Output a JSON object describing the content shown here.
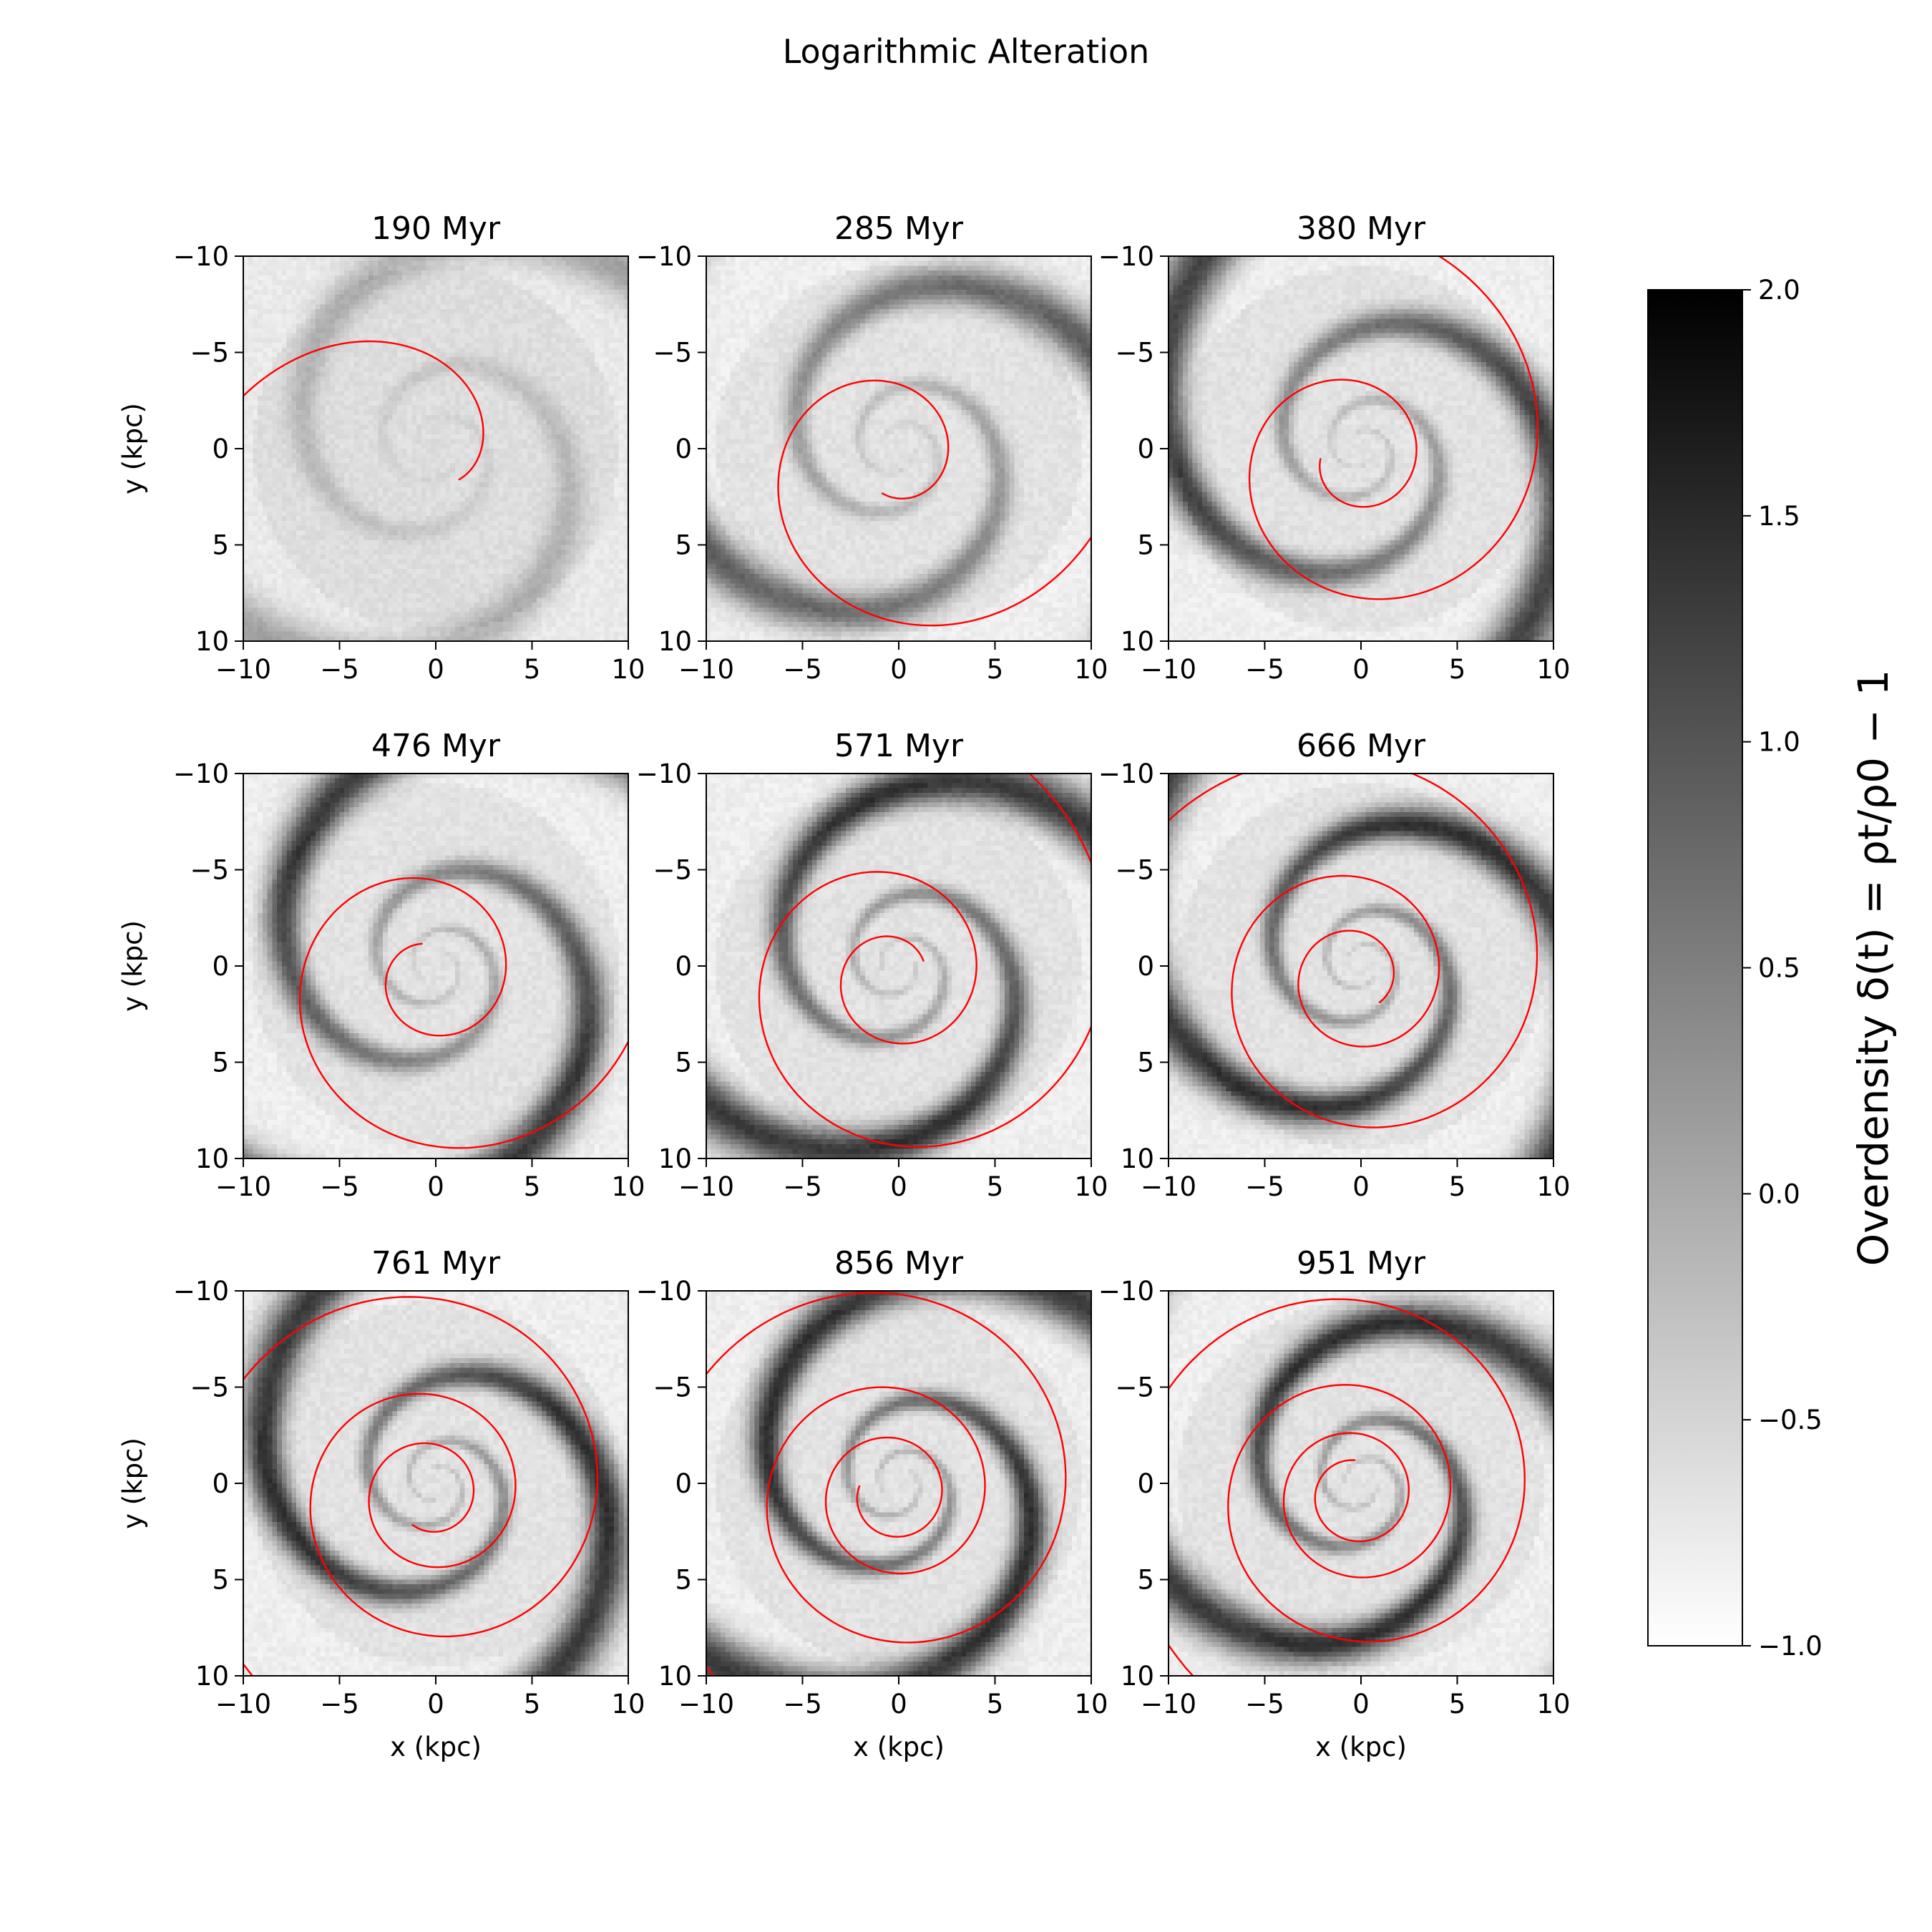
{
  "figure": {
    "suptitle": "Logarithmic Alteration"
  },
  "chart_data": {
    "type": "heatmap",
    "title": "Logarithmic Alteration",
    "xlabel": "x (kpc)",
    "ylabel": "y (kpc)",
    "xlim": [
      -10,
      10
    ],
    "ylim": [
      10,
      -10
    ],
    "xticks": [
      -10,
      -5,
      0,
      5,
      10
    ],
    "yticks": [
      -10,
      -5,
      0,
      5,
      10
    ],
    "x_tick_labels": [
      "−10",
      "−5",
      "0",
      "5",
      "10"
    ],
    "y_tick_labels": [
      "−10",
      "−5",
      "0",
      "5",
      "10"
    ],
    "colormap": "gray_r",
    "overlay_color": "#ff0000",
    "colorbar": {
      "label": "Overdensity δ(t) = ρt/ρ0 − 1",
      "range": [
        -1.0,
        2.0
      ],
      "ticks": [
        2.0,
        1.5,
        1.0,
        0.5,
        0.0,
        -0.5,
        -1.0
      ],
      "tick_labels": [
        "2.0",
        "1.5",
        "1.0",
        "0.5",
        "0.0",
        "−0.5",
        "−1.0"
      ]
    },
    "panels": [
      {
        "title": "190 Myr",
        "time_myr": 190,
        "spiral_turns": 0.55,
        "spiral_r_max": 10.5,
        "arm_rings": 1,
        "arm_strength": 0.35,
        "shade": 0.12
      },
      {
        "title": "285 Myr",
        "time_myr": 285,
        "spiral_turns": 1.3,
        "spiral_r_max": 12.0,
        "arm_rings": 2,
        "arm_strength": 0.7,
        "shade": 0.1
      },
      {
        "title": "380 Myr",
        "time_myr": 380,
        "spiral_turns": 1.7,
        "spiral_r_max": 11.5,
        "arm_rings": 3,
        "arm_strength": 0.8,
        "shade": 0.1
      },
      {
        "title": "476 Myr",
        "time_myr": 476,
        "spiral_turns": 1.8,
        "spiral_r_max": 12.5,
        "arm_rings": 3,
        "arm_strength": 0.85,
        "shade": 0.1
      },
      {
        "title": "571 Myr",
        "time_myr": 571,
        "spiral_turns": 2.1,
        "spiral_r_max": 13.0,
        "arm_rings": 4,
        "arm_strength": 0.85,
        "shade": 0.1
      },
      {
        "title": "666 Myr",
        "time_myr": 666,
        "spiral_turns": 2.6,
        "spiral_r_max": 13.5,
        "arm_rings": 5,
        "arm_strength": 0.85,
        "shade": 0.1
      },
      {
        "title": "761 Myr",
        "time_myr": 761,
        "spiral_turns": 3.0,
        "spiral_r_max": 13.5,
        "arm_rings": 5,
        "arm_strength": 0.85,
        "shade": 0.1
      },
      {
        "title": "856 Myr",
        "time_myr": 856,
        "spiral_turns": 3.2,
        "spiral_r_max": 13.5,
        "arm_rings": 6,
        "arm_strength": 0.85,
        "shade": 0.1
      },
      {
        "title": "951 Myr",
        "time_myr": 951,
        "spiral_turns": 3.5,
        "spiral_r_max": 13.5,
        "arm_rings": 6,
        "arm_strength": 0.85,
        "shade": 0.1
      }
    ]
  }
}
